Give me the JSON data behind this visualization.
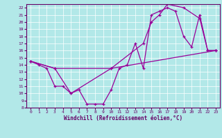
{
  "xlabel": "Windchill (Refroidissement éolien,°C)",
  "bg_color": "#b2e8e8",
  "line_color": "#990099",
  "xlim": [
    -0.5,
    23.5
  ],
  "ylim": [
    8,
    22.5
  ],
  "xticks": [
    0,
    1,
    2,
    3,
    4,
    5,
    6,
    7,
    8,
    9,
    10,
    11,
    12,
    13,
    14,
    15,
    16,
    17,
    18,
    19,
    20,
    21,
    22,
    23
  ],
  "yticks": [
    8,
    9,
    10,
    11,
    12,
    13,
    14,
    15,
    16,
    17,
    18,
    19,
    20,
    21,
    22
  ],
  "series1_x": [
    0,
    1,
    2,
    3,
    4,
    5,
    6,
    7,
    8,
    9,
    10,
    11,
    12,
    13,
    14,
    15,
    16,
    17,
    18,
    19,
    20,
    21,
    22,
    23
  ],
  "series1_y": [
    14.5,
    14.0,
    13.5,
    11.0,
    11.0,
    10.0,
    10.5,
    8.5,
    8.5,
    8.5,
    10.5,
    13.5,
    14.0,
    17.0,
    13.5,
    21.0,
    21.5,
    22.0,
    21.5,
    18.0,
    16.5,
    21.0,
    16.0,
    16.0
  ],
  "series2_x": [
    0,
    3,
    10,
    14,
    15,
    16,
    17,
    19,
    21,
    22,
    23
  ],
  "series2_y": [
    14.5,
    13.5,
    13.5,
    17.0,
    20.0,
    21.0,
    22.5,
    22.0,
    20.5,
    16.0,
    16.0
  ],
  "series3_x": [
    0,
    3,
    5,
    10,
    23
  ],
  "series3_y": [
    14.5,
    13.5,
    10.0,
    13.5,
    16.0
  ]
}
